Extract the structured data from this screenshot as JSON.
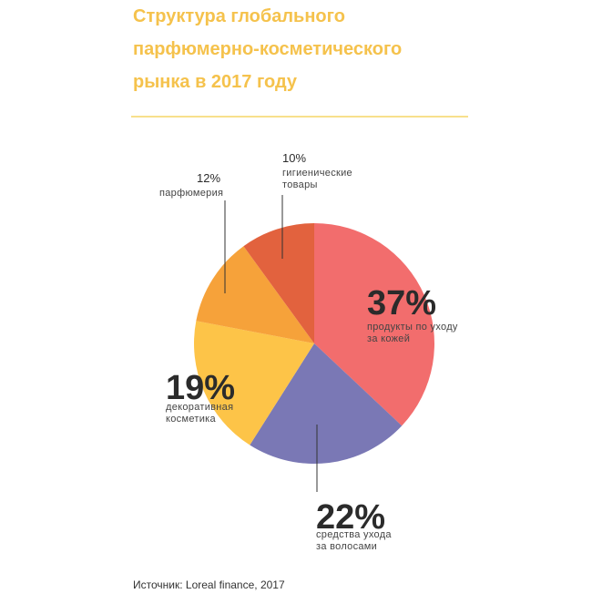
{
  "title_lines": [
    "Структура глобального",
    "парфюмерно-косметического",
    "рынка в 2017 году"
  ],
  "source": "Источник: Loreal finance, 2017",
  "colors": {
    "title": "#f5c24c",
    "rule": "#f8e08c"
  },
  "chart_data": {
    "type": "pie",
    "title": "Структура глобального парфюмерно-косметического рынка в 2017 году",
    "slices": [
      {
        "label_lines": [
          "продукты по уходу",
          "за кожей"
        ],
        "value": 37,
        "display": "37%",
        "color": "#f26d6d"
      },
      {
        "label_lines": [
          "средства ухода",
          "за волосами"
        ],
        "value": 22,
        "display": "22%",
        "color": "#7a78b5"
      },
      {
        "label_lines": [
          "декоративная",
          "косметика"
        ],
        "value": 19,
        "display": "19%",
        "color": "#fdc448"
      },
      {
        "label_lines": [
          "парфюмерия"
        ],
        "value": 12,
        "display": "12%",
        "color": "#f6a23a"
      },
      {
        "label_lines": [
          "гигиенические",
          "товары"
        ],
        "value": 10,
        "display": "10%",
        "color": "#e2623e"
      }
    ]
  }
}
